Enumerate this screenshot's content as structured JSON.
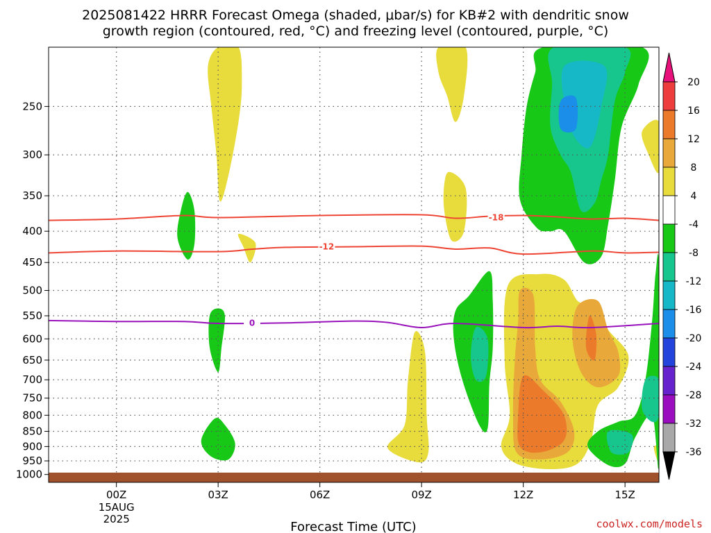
{
  "title_line1": "2025081422 HRRR Forecast Omega (shaded, μbar/s) for KB#2 with dendritic snow",
  "title_line2": "growth region (contoured, red, °C) and freezing level (contoured, purple, °C)",
  "xlabel": "Forecast Time (UTC)",
  "credit": "coolwx.com/models",
  "colors": {
    "ground": "#a0522d",
    "dendritic": "#ee4433",
    "freezing": "#9911bb"
  },
  "chart_data": {
    "type": "heatmap",
    "x_axis": {
      "range": [
        -2,
        16
      ],
      "ticks": [
        {
          "value": 0,
          "label": "00Z",
          "sub": [
            "15AUG",
            "2025"
          ]
        },
        {
          "value": 3,
          "label": "03Z"
        },
        {
          "value": 6,
          "label": "06Z"
        },
        {
          "value": 9,
          "label": "09Z"
        },
        {
          "value": 12,
          "label": "12Z"
        },
        {
          "value": 15,
          "label": "15Z"
        }
      ]
    },
    "y_axis": {
      "scale": "log-pressure",
      "range": [
        200,
        1030
      ],
      "ticks": [
        250,
        300,
        350,
        400,
        450,
        500,
        550,
        600,
        650,
        700,
        750,
        800,
        850,
        900,
        950,
        1000
      ]
    },
    "colorbar": {
      "labels": [
        "20",
        "16",
        "12",
        "8",
        "4",
        "-4",
        "-8",
        "-12",
        "-16",
        "-20",
        "-24",
        "-28",
        "-32",
        "-36"
      ],
      "bins": [
        {
          "range": [
            16,
            20
          ],
          "color": "#ee3d3d"
        },
        {
          "range": [
            12,
            16
          ],
          "color": "#ec7a2b"
        },
        {
          "range": [
            8,
            12
          ],
          "color": "#e8a83a"
        },
        {
          "range": [
            4,
            8
          ],
          "color": "#e8dc3c"
        },
        {
          "range": [
            -4,
            4
          ],
          "color": "#ffffff"
        },
        {
          "range": [
            -8,
            -4
          ],
          "color": "#17c817"
        },
        {
          "range": [
            -12,
            -8
          ],
          "color": "#16c68c"
        },
        {
          "range": [
            -16,
            -12
          ],
          "color": "#16b8c8"
        },
        {
          "range": [
            -20,
            -16
          ],
          "color": "#1a8ee8"
        },
        {
          "range": [
            -24,
            -20
          ],
          "color": "#2244dd"
        },
        {
          "range": [
            -28,
            -24
          ],
          "color": "#6622cc"
        },
        {
          "range": [
            -32,
            -28
          ],
          "color": "#9b0ec0"
        },
        {
          "range": [
            -36,
            -32
          ],
          "color": "#a8a8a8"
        }
      ],
      "max_extend_color": "#e8107a",
      "min_extend_color": "#000000"
    },
    "contours": [
      {
        "label": "-18",
        "color": "#ee4433",
        "label_at": [
          11.2,
          380
        ],
        "points": [
          [
            -2,
            384
          ],
          [
            0,
            382
          ],
          [
            2,
            377
          ],
          [
            3,
            380
          ],
          [
            6,
            377
          ],
          [
            9,
            376
          ],
          [
            10,
            381
          ],
          [
            11,
            378
          ],
          [
            12,
            377
          ],
          [
            13,
            379
          ],
          [
            14,
            382
          ],
          [
            15,
            381
          ],
          [
            16,
            384
          ]
        ]
      },
      {
        "label": "-12",
        "color": "#ee4433",
        "label_at": [
          6.2,
          424
        ],
        "points": [
          [
            -2,
            434
          ],
          [
            0,
            431
          ],
          [
            3,
            432
          ],
          [
            4,
            428
          ],
          [
            5,
            425
          ],
          [
            7,
            424
          ],
          [
            9,
            423
          ],
          [
            10,
            428
          ],
          [
            11,
            426
          ],
          [
            12,
            436
          ],
          [
            14,
            431
          ],
          [
            15,
            434
          ],
          [
            16,
            433
          ]
        ]
      },
      {
        "label": "0",
        "color": "#9911bb",
        "label_at": [
          4,
          565
        ],
        "points": [
          [
            -2,
            560
          ],
          [
            0,
            562
          ],
          [
            2,
            562
          ],
          [
            3,
            566
          ],
          [
            5,
            565
          ],
          [
            7,
            561
          ],
          [
            8,
            564
          ],
          [
            9,
            575
          ],
          [
            10,
            566
          ],
          [
            12,
            575
          ],
          [
            13,
            572
          ],
          [
            14,
            575
          ],
          [
            16,
            566
          ]
        ]
      }
    ],
    "regions": [
      {
        "omega": 6,
        "points": [
          [
            3.0,
            200
          ],
          [
            3.6,
            200
          ],
          [
            3.7,
            230
          ],
          [
            3.6,
            265
          ],
          [
            3.3,
            325
          ],
          [
            3.05,
            357
          ],
          [
            2.95,
            300
          ],
          [
            2.8,
            250
          ],
          [
            2.7,
            215
          ]
        ]
      },
      {
        "omega": 6,
        "points": [
          [
            3.6,
            404
          ],
          [
            4.1,
            418
          ],
          [
            3.95,
            450
          ],
          [
            3.75,
            425
          ]
        ]
      },
      {
        "omega": 6,
        "points": [
          [
            9.5,
            200
          ],
          [
            10.3,
            200
          ],
          [
            10.25,
            240
          ],
          [
            10.0,
            265
          ],
          [
            9.75,
            240
          ],
          [
            9.5,
            220
          ]
        ]
      },
      {
        "omega": 6,
        "points": [
          [
            9.8,
            320
          ],
          [
            10.3,
            340
          ],
          [
            10.25,
            400
          ],
          [
            9.9,
            415
          ],
          [
            9.7,
            380
          ],
          [
            9.65,
            345
          ]
        ]
      },
      {
        "omega": 6,
        "points": [
          [
            15.5,
            275
          ],
          [
            16.0,
            265
          ],
          [
            16.0,
            320
          ],
          [
            15.7,
            300
          ]
        ]
      },
      {
        "omega": 6,
        "points": [
          [
            8.8,
            585
          ],
          [
            9.1,
            630
          ],
          [
            9.15,
            800
          ],
          [
            9.2,
            920
          ],
          [
            8.9,
            955
          ],
          [
            8.0,
            905
          ],
          [
            8.5,
            830
          ],
          [
            8.6,
            700
          ]
        ]
      },
      {
        "omega": 6,
        "points": [
          [
            11.55,
            490
          ],
          [
            12.5,
            470
          ],
          [
            13.2,
            480
          ],
          [
            13.6,
            520
          ],
          [
            14.0,
            530
          ],
          [
            14.5,
            580
          ],
          [
            15.1,
            640
          ],
          [
            14.8,
            720
          ],
          [
            14.2,
            770
          ],
          [
            14.0,
            880
          ],
          [
            13.6,
            960
          ],
          [
            12.8,
            980
          ],
          [
            11.8,
            960
          ],
          [
            11.35,
            900
          ],
          [
            11.6,
            800
          ],
          [
            11.45,
            650
          ]
        ]
      },
      {
        "omega": 6,
        "points": [
          [
            15.85,
            905
          ],
          [
            16.0,
            900
          ],
          [
            16.0,
            960
          ]
        ]
      },
      {
        "omega": 10,
        "points": [
          [
            11.9,
            500
          ],
          [
            12.3,
            510
          ],
          [
            12.35,
            620
          ],
          [
            12.5,
            700
          ],
          [
            13.1,
            760
          ],
          [
            13.5,
            850
          ],
          [
            13.3,
            920
          ],
          [
            12.5,
            945
          ],
          [
            11.8,
            920
          ],
          [
            11.7,
            800
          ],
          [
            11.75,
            650
          ],
          [
            11.85,
            560
          ]
        ]
      },
      {
        "omega": 10,
        "points": [
          [
            13.6,
            530
          ],
          [
            14.2,
            520
          ],
          [
            14.5,
            580
          ],
          [
            14.8,
            630
          ],
          [
            14.8,
            690
          ],
          [
            14.2,
            720
          ],
          [
            13.7,
            680
          ],
          [
            13.45,
            600
          ]
        ]
      },
      {
        "omega": 14,
        "points": [
          [
            12.0,
            690
          ],
          [
            12.6,
            730
          ],
          [
            13.2,
            800
          ],
          [
            13.2,
            880
          ],
          [
            12.5,
            920
          ],
          [
            11.9,
            900
          ],
          [
            11.85,
            800
          ]
        ]
      },
      {
        "omega": 14,
        "points": [
          [
            13.95,
            550
          ],
          [
            14.15,
            590
          ],
          [
            14.1,
            650
          ],
          [
            13.85,
            620
          ]
        ]
      },
      {
        "omega": -6,
        "points": [
          [
            2.1,
            345
          ],
          [
            2.3,
            370
          ],
          [
            2.3,
            420
          ],
          [
            2.1,
            445
          ],
          [
            1.8,
            410
          ],
          [
            1.9,
            370
          ]
        ]
      },
      {
        "omega": -6,
        "points": [
          [
            3.0,
            535
          ],
          [
            3.2,
            550
          ],
          [
            3.1,
            620
          ],
          [
            3.0,
            680
          ],
          [
            2.75,
            620
          ],
          [
            2.75,
            550
          ]
        ]
      },
      {
        "omega": -6,
        "points": [
          [
            2.9,
            810
          ],
          [
            3.2,
            830
          ],
          [
            3.5,
            890
          ],
          [
            3.3,
            945
          ],
          [
            2.8,
            935
          ],
          [
            2.5,
            880
          ]
        ]
      },
      {
        "omega": -6,
        "points": [
          [
            11.0,
            465
          ],
          [
            11.1,
            520
          ],
          [
            11.1,
            620
          ],
          [
            11.0,
            710
          ],
          [
            10.95,
            840
          ],
          [
            10.7,
            830
          ],
          [
            10.2,
            700
          ],
          [
            9.95,
            600
          ],
          [
            10.0,
            540
          ],
          [
            10.4,
            510
          ]
        ]
      },
      {
        "omega": -6,
        "points": [
          [
            12.6,
            200
          ],
          [
            15.5,
            200
          ],
          [
            15.4,
            230
          ],
          [
            14.9,
            270
          ],
          [
            14.7,
            330
          ],
          [
            14.5,
            390
          ],
          [
            14.3,
            440
          ],
          [
            13.8,
            450
          ],
          [
            13.2,
            400
          ],
          [
            12.8,
            400
          ],
          [
            12.4,
            395
          ],
          [
            11.9,
            355
          ],
          [
            11.95,
            300
          ],
          [
            12.1,
            250
          ],
          [
            12.35,
            220
          ]
        ]
      },
      {
        "omega": -6,
        "points": [
          [
            15.9,
            470
          ],
          [
            16.0,
            460
          ],
          [
            16.0,
            960
          ],
          [
            15.8,
            800
          ],
          [
            15.3,
            870
          ],
          [
            15.0,
            960
          ],
          [
            14.5,
            965
          ],
          [
            13.9,
            900
          ],
          [
            14.2,
            850
          ],
          [
            14.8,
            820
          ],
          [
            15.3,
            800
          ],
          [
            15.6,
            700
          ],
          [
            15.8,
            560
          ]
        ]
      },
      {
        "omega": -10,
        "points": [
          [
            10.6,
            575
          ],
          [
            10.95,
            600
          ],
          [
            10.9,
            690
          ],
          [
            10.6,
            700
          ],
          [
            10.45,
            640
          ]
        ]
      },
      {
        "omega": -10,
        "points": [
          [
            12.9,
            200
          ],
          [
            15.0,
            200
          ],
          [
            15.0,
            220
          ],
          [
            14.7,
            245
          ],
          [
            14.5,
            300
          ],
          [
            14.3,
            330
          ],
          [
            14.1,
            360
          ],
          [
            13.7,
            370
          ],
          [
            13.4,
            320
          ],
          [
            13.1,
            300
          ],
          [
            12.8,
            270
          ],
          [
            12.85,
            230
          ]
        ]
      },
      {
        "omega": -10,
        "points": [
          [
            15.6,
            700
          ],
          [
            16.0,
            700
          ],
          [
            16.0,
            800
          ],
          [
            15.8,
            820
          ],
          [
            15.5,
            780
          ]
        ]
      },
      {
        "omega": -10,
        "points": [
          [
            14.5,
            850
          ],
          [
            15.2,
            860
          ],
          [
            15.1,
            920
          ],
          [
            14.6,
            920
          ]
        ]
      },
      {
        "omega": -14,
        "points": [
          [
            13.2,
            215
          ],
          [
            14.4,
            215
          ],
          [
            14.3,
            250
          ],
          [
            14.0,
            290
          ],
          [
            13.6,
            285
          ],
          [
            13.3,
            260
          ]
        ]
      },
      {
        "omega": -18,
        "points": [
          [
            13.1,
            245
          ],
          [
            13.55,
            242
          ],
          [
            13.55,
            272
          ],
          [
            13.1,
            272
          ]
        ]
      }
    ]
  }
}
